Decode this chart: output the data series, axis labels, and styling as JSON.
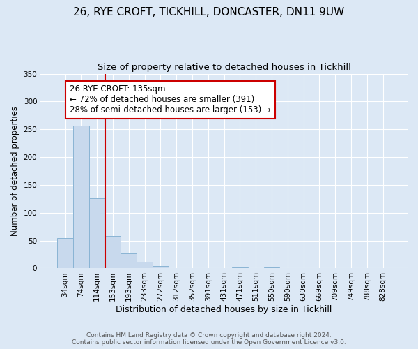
{
  "title": "26, RYE CROFT, TICKHILL, DONCASTER, DN11 9UW",
  "subtitle": "Size of property relative to detached houses in Tickhill",
  "xlabel": "Distribution of detached houses by size in Tickhill",
  "ylabel": "Number of detached properties",
  "bar_labels": [
    "34sqm",
    "74sqm",
    "114sqm",
    "153sqm",
    "193sqm",
    "233sqm",
    "272sqm",
    "312sqm",
    "352sqm",
    "391sqm",
    "431sqm",
    "471sqm",
    "511sqm",
    "550sqm",
    "590sqm",
    "630sqm",
    "669sqm",
    "709sqm",
    "749sqm",
    "788sqm",
    "828sqm"
  ],
  "bar_values": [
    55,
    257,
    126,
    58,
    27,
    12,
    4,
    1,
    0,
    0,
    0,
    2,
    0,
    2,
    0,
    0,
    1,
    0,
    0,
    0,
    1
  ],
  "bar_color": "#c8d9ed",
  "bar_edgecolor": "#8ab4d4",
  "ylim": [
    0,
    350
  ],
  "yticks": [
    0,
    50,
    100,
    150,
    200,
    250,
    300,
    350
  ],
  "vline_color": "#cc0000",
  "vline_x_index": 2.5,
  "annotation_title": "26 RYE CROFT: 135sqm",
  "annotation_line1": "← 72% of detached houses are smaller (391)",
  "annotation_line2": "28% of semi-detached houses are larger (153) →",
  "annotation_box_color": "#ffffff",
  "annotation_box_edgecolor": "#cc0000",
  "footer1": "Contains HM Land Registry data © Crown copyright and database right 2024.",
  "footer2": "Contains public sector information licensed under the Open Government Licence v3.0.",
  "background_color": "#dce8f5",
  "plot_background": "#dce8f5",
  "grid_color": "#ffffff",
  "title_fontsize": 11,
  "subtitle_fontsize": 9.5,
  "ylabel_fontsize": 8.5,
  "xlabel_fontsize": 9,
  "tick_fontsize": 7.5,
  "footer_fontsize": 6.5,
  "annotation_fontsize": 8.5
}
